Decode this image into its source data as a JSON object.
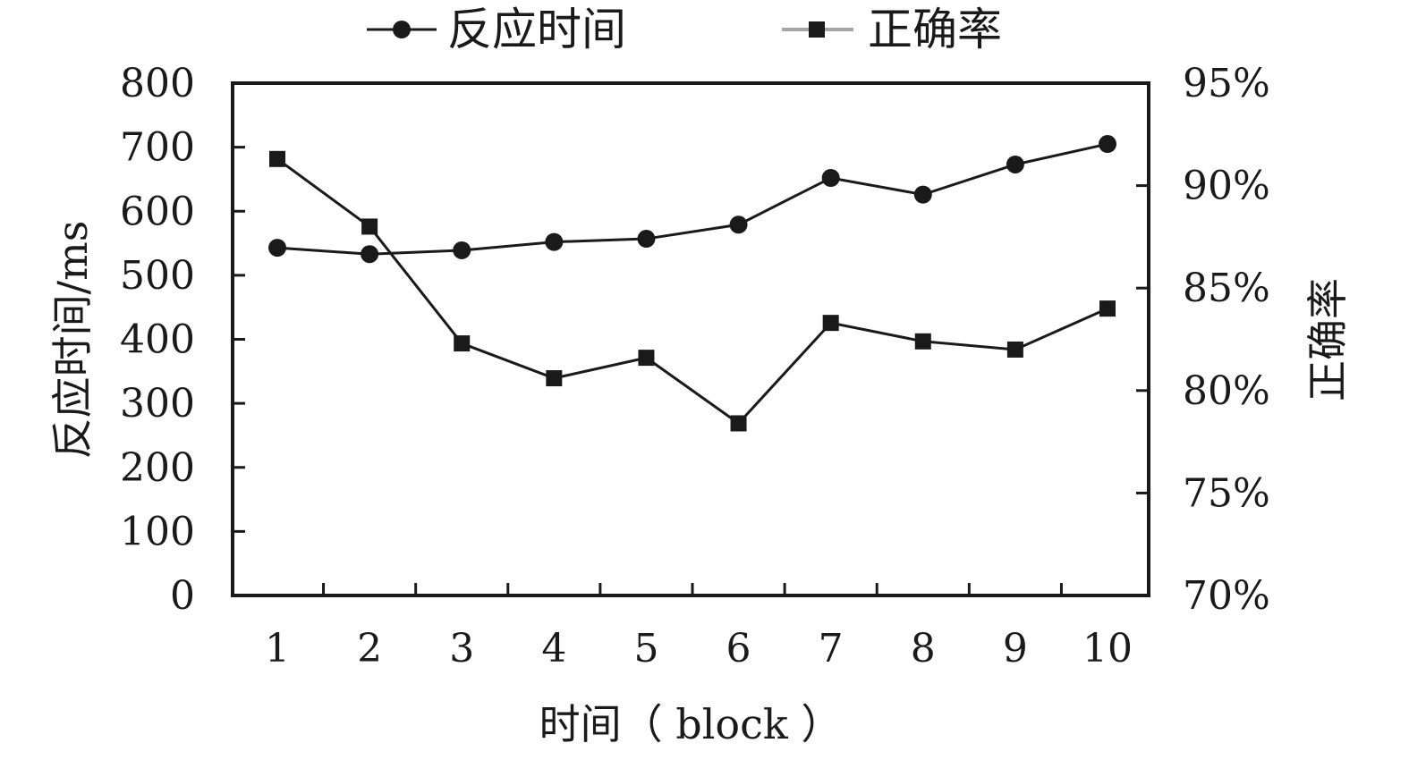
{
  "chart_data": {
    "type": "line",
    "categories": [
      "1",
      "2",
      "3",
      "4",
      "5",
      "6",
      "7",
      "8",
      "9",
      "10"
    ],
    "xlabel": "时间（ block ）",
    "ylabel_left": "反应时间/ms",
    "ylabel_right": "正确率",
    "ylim_left": [
      0,
      800
    ],
    "yticks_left": [
      "0",
      "100",
      "200",
      "300",
      "400",
      "500",
      "600",
      "700",
      "800"
    ],
    "ylim_right": [
      70,
      95
    ],
    "yticks_right": [
      "70%",
      "75%",
      "80%",
      "85%",
      "90%",
      "95%"
    ],
    "grid": false,
    "legend_position": "top",
    "series": [
      {
        "name": "反应时间",
        "axis": "left",
        "marker": "circle",
        "line_color": "#1a1a1a",
        "values": [
          543,
          533,
          539,
          552,
          557,
          579,
          652,
          626,
          673,
          705
        ]
      },
      {
        "name": "正确率",
        "axis": "right",
        "marker": "square",
        "line_color": "#1a1a1a",
        "legend_line_color": "#a6a6a6",
        "values": [
          91.3,
          88.0,
          82.3,
          80.6,
          81.6,
          78.4,
          83.3,
          82.4,
          82.0,
          84.0
        ]
      }
    ]
  }
}
